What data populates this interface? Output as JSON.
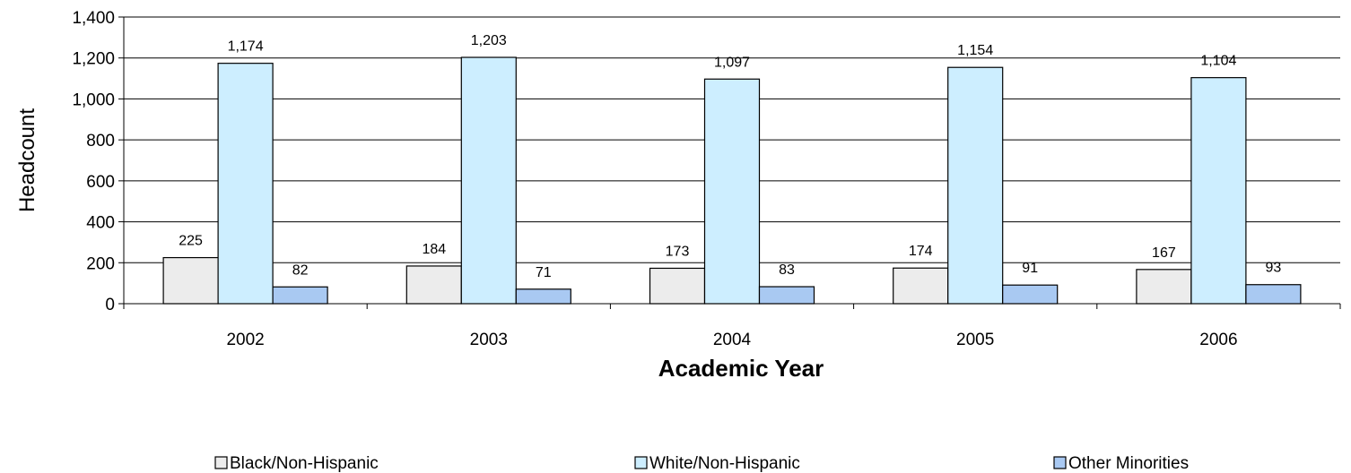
{
  "chart_data": {
    "type": "bar",
    "title": "",
    "xlabel": "Academic Year",
    "ylabel": "Headcount",
    "ylim": [
      0,
      1400
    ],
    "ytick_step": 200,
    "grid": true,
    "legend_position": "bottom",
    "categories": [
      "2002",
      "2003",
      "2004",
      "2005",
      "2006"
    ],
    "series": [
      {
        "name": "Black/Non-Hispanic",
        "color": "#ececec",
        "values": [
          225,
          184,
          173,
          174,
          167
        ],
        "labels": [
          "225",
          "184",
          "173",
          "174",
          "167"
        ]
      },
      {
        "name": "White/Non-Hispanic",
        "color": "#cdeeff",
        "values": [
          1174,
          1203,
          1097,
          1154,
          1104
        ],
        "labels": [
          "1,174",
          "1,203",
          "1,097",
          "1,154",
          "1,104"
        ]
      },
      {
        "name": "Other Minorities",
        "color": "#a9c9f2",
        "values": [
          82,
          71,
          83,
          91,
          93
        ],
        "labels": [
          "82",
          "71",
          "83",
          "91",
          "93"
        ]
      }
    ],
    "ytick_labels": [
      "0",
      "200",
      "400",
      "600",
      "800",
      "1,000",
      "1,200",
      "1,400"
    ]
  }
}
